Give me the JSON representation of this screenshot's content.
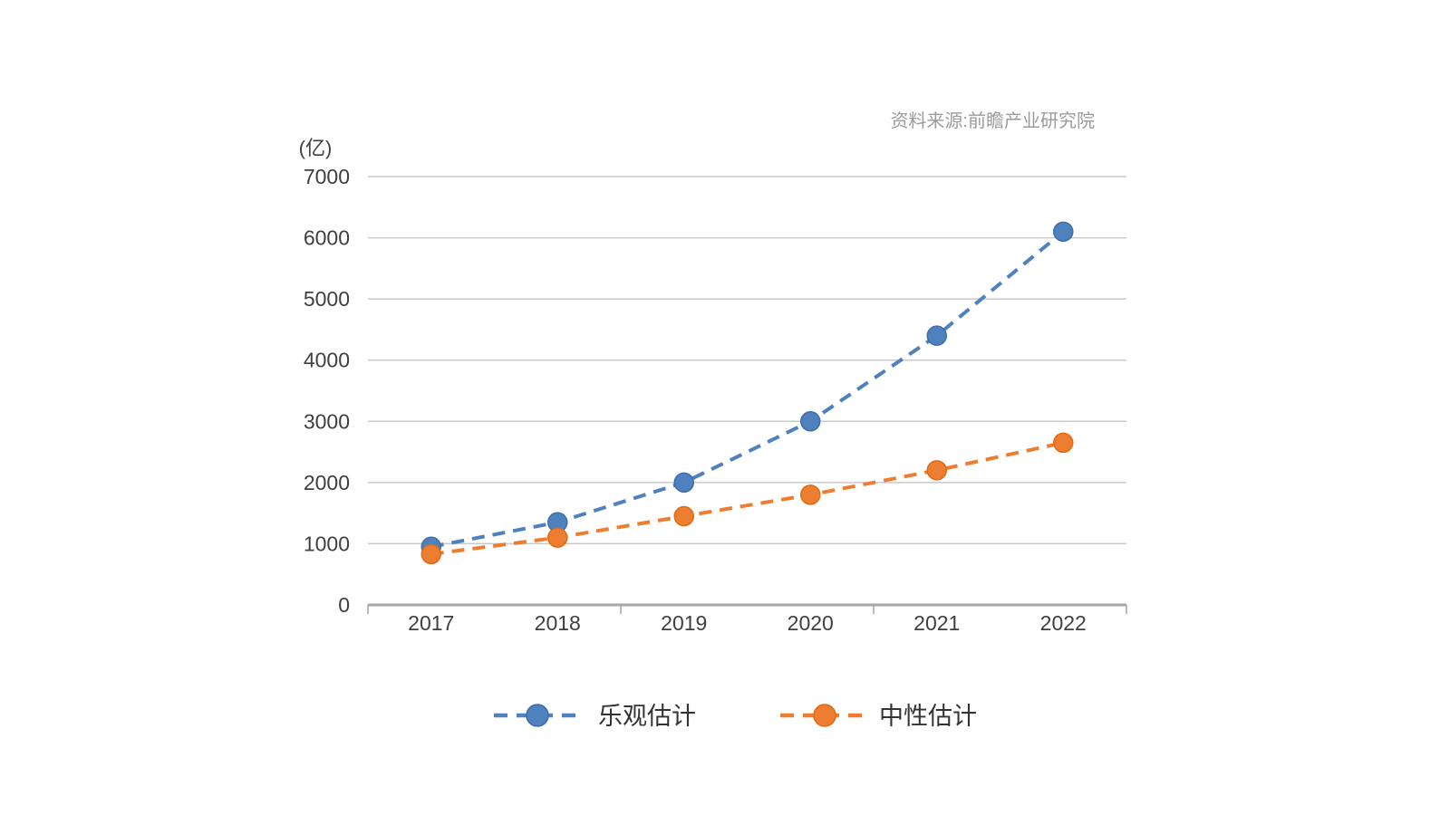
{
  "source_note": "资料来源:前瞻产业研究院",
  "unit_label": "(亿)",
  "chart_data": {
    "type": "line",
    "title": "",
    "x": [
      "2017",
      "2018",
      "2019",
      "2020",
      "2021",
      "2022"
    ],
    "series": [
      {
        "name": "乐观估计",
        "values": [
          950,
          1350,
          2000,
          3000,
          4400,
          6100
        ],
        "color": "#4e81bd",
        "marker_edge": "#3e6da8",
        "line_style": "dashed",
        "marker": "circle"
      },
      {
        "name": "中性估计",
        "values": [
          830,
          1100,
          1450,
          1800,
          2200,
          2650
        ],
        "color": "#ed7d31",
        "marker_edge": "#dd6b14",
        "line_style": "dashed",
        "marker": "circle"
      }
    ],
    "ylim": [
      0,
      7000
    ],
    "yticks": [
      0,
      1000,
      2000,
      3000,
      4000,
      5000,
      6000,
      7000
    ],
    "ylabel_unit": "(亿)",
    "grid": "horizontal",
    "legend_position": "bottom",
    "source": "资料来源:前瞻产业研究院"
  },
  "colors": {
    "optimistic_series": "#4e81bd",
    "neutral_series": "#ed7d31",
    "gridline": "#c9c9c9",
    "axis": "#a6a6a6",
    "tick_label": "#3f3f3f",
    "legend_label": "#333333",
    "source_text": "#9b9b9b",
    "background": "#ffffff"
  }
}
